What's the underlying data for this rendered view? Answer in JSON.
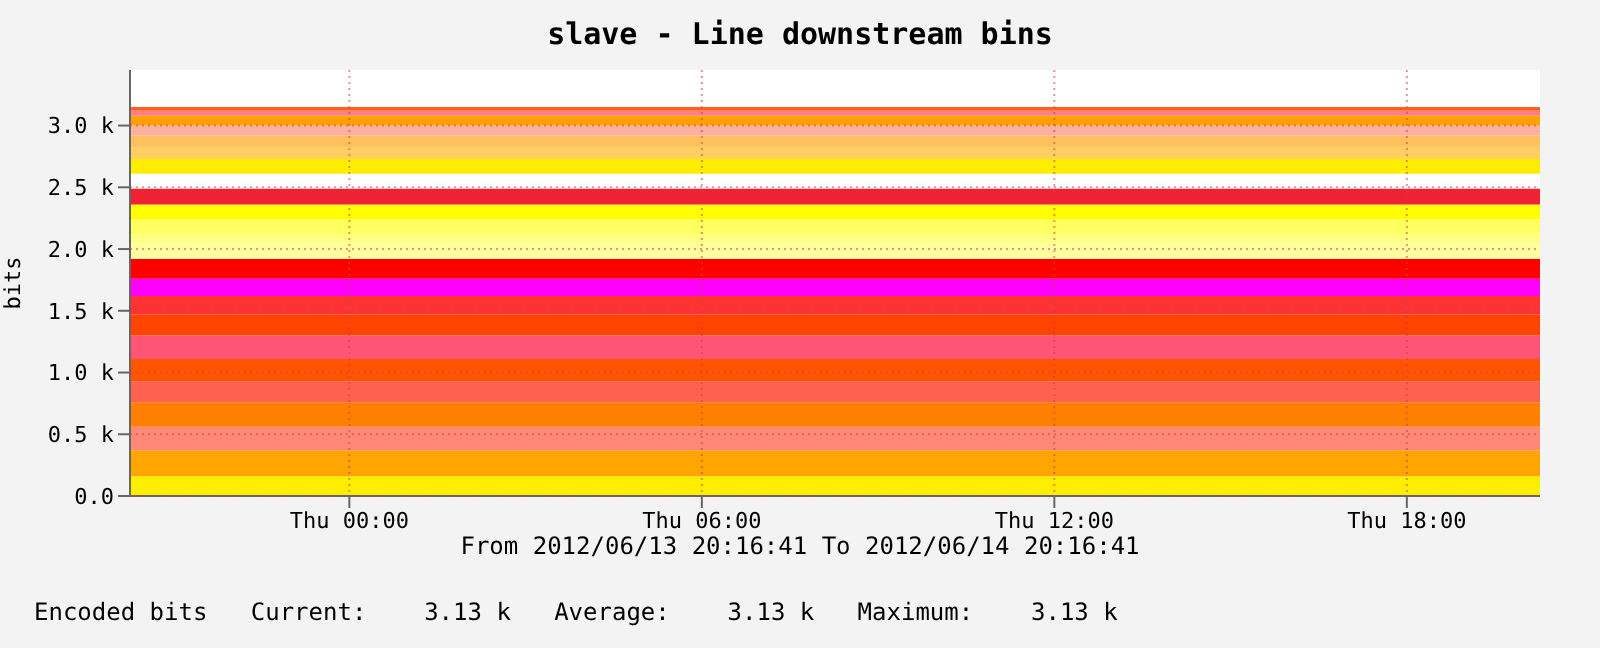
{
  "chart_data": {
    "type": "area",
    "title": "slave - Line downstream bins",
    "ylabel": "bits",
    "stacked": true,
    "grid": true,
    "legend": false,
    "x": [
      "2012-06-13T20:16",
      "2012-06-14T20:16"
    ],
    "xlim": [
      "2012-06-13T20:16",
      "2012-06-14T20:16"
    ],
    "xticks": [
      {
        "value": "2012-06-14T00:00",
        "label": "Thu 00:00"
      },
      {
        "value": "2012-06-14T06:00",
        "label": "Thu 06:00"
      },
      {
        "value": "2012-06-14T12:00",
        "label": "Thu 12:00"
      },
      {
        "value": "2012-06-14T18:00",
        "label": "Thu 18:00"
      }
    ],
    "ylim": [
      0,
      3450
    ],
    "yticks": [
      {
        "value": 0,
        "label": "0.0"
      },
      {
        "value": 500,
        "label": "0.5 k"
      },
      {
        "value": 1000,
        "label": "1.0 k"
      },
      {
        "value": 1500,
        "label": "1.5 k"
      },
      {
        "value": 2000,
        "label": "2.0 k"
      },
      {
        "value": 2500,
        "label": "2.5 k"
      },
      {
        "value": 3000,
        "label": "3.0 k"
      }
    ],
    "series": [
      {
        "color": "#ffee00",
        "values": [
          160,
          160
        ]
      },
      {
        "color": "#ffa500",
        "values": [
          210,
          210
        ]
      },
      {
        "color": "#ff8877",
        "values": [
          190,
          190
        ]
      },
      {
        "color": "#ff8000",
        "values": [
          200,
          200
        ]
      },
      {
        "color": "#ff6050",
        "values": [
          170,
          170
        ]
      },
      {
        "color": "#ff5500",
        "values": [
          180,
          180
        ]
      },
      {
        "color": "#ff5577",
        "values": [
          190,
          190
        ]
      },
      {
        "color": "#ff4400",
        "values": [
          170,
          170
        ]
      },
      {
        "color": "#ff3333",
        "values": [
          150,
          150
        ]
      },
      {
        "color": "#ff00ff",
        "values": [
          140,
          140
        ]
      },
      {
        "color": "#ff0000",
        "values": [
          160,
          160
        ]
      },
      {
        "color": "#ffffa0",
        "values": [
          130,
          130
        ]
      },
      {
        "color": "#ffff80",
        "values": [
          80,
          80
        ]
      },
      {
        "color": "#ffff60",
        "values": [
          110,
          110
        ]
      },
      {
        "color": "#ffff00",
        "values": [
          120,
          120
        ]
      },
      {
        "color": "#ee2233",
        "values": [
          130,
          130
        ]
      },
      {
        "color": "#ffffff",
        "values": [
          120,
          120
        ]
      },
      {
        "color": "#ffee00",
        "values": [
          120,
          120
        ]
      },
      {
        "color": "#ffd060",
        "values": [
          90,
          90
        ]
      },
      {
        "color": "#ffc060",
        "values": [
          100,
          100
        ]
      },
      {
        "color": "#ffb0a0",
        "values": [
          80,
          80
        ]
      },
      {
        "color": "#ffa000",
        "values": [
          80,
          80
        ]
      },
      {
        "color": "#ff8080",
        "values": [
          40,
          40
        ]
      },
      {
        "color": "#ff6020",
        "values": [
          30,
          30
        ]
      }
    ],
    "annotations": [
      "From 2012/06/13 20:16:41 To 2012/06/14 20:16:41",
      "Encoded bits   Current:    3.13 k   Average:    3.13 k   Maximum:    3.13 k"
    ]
  }
}
